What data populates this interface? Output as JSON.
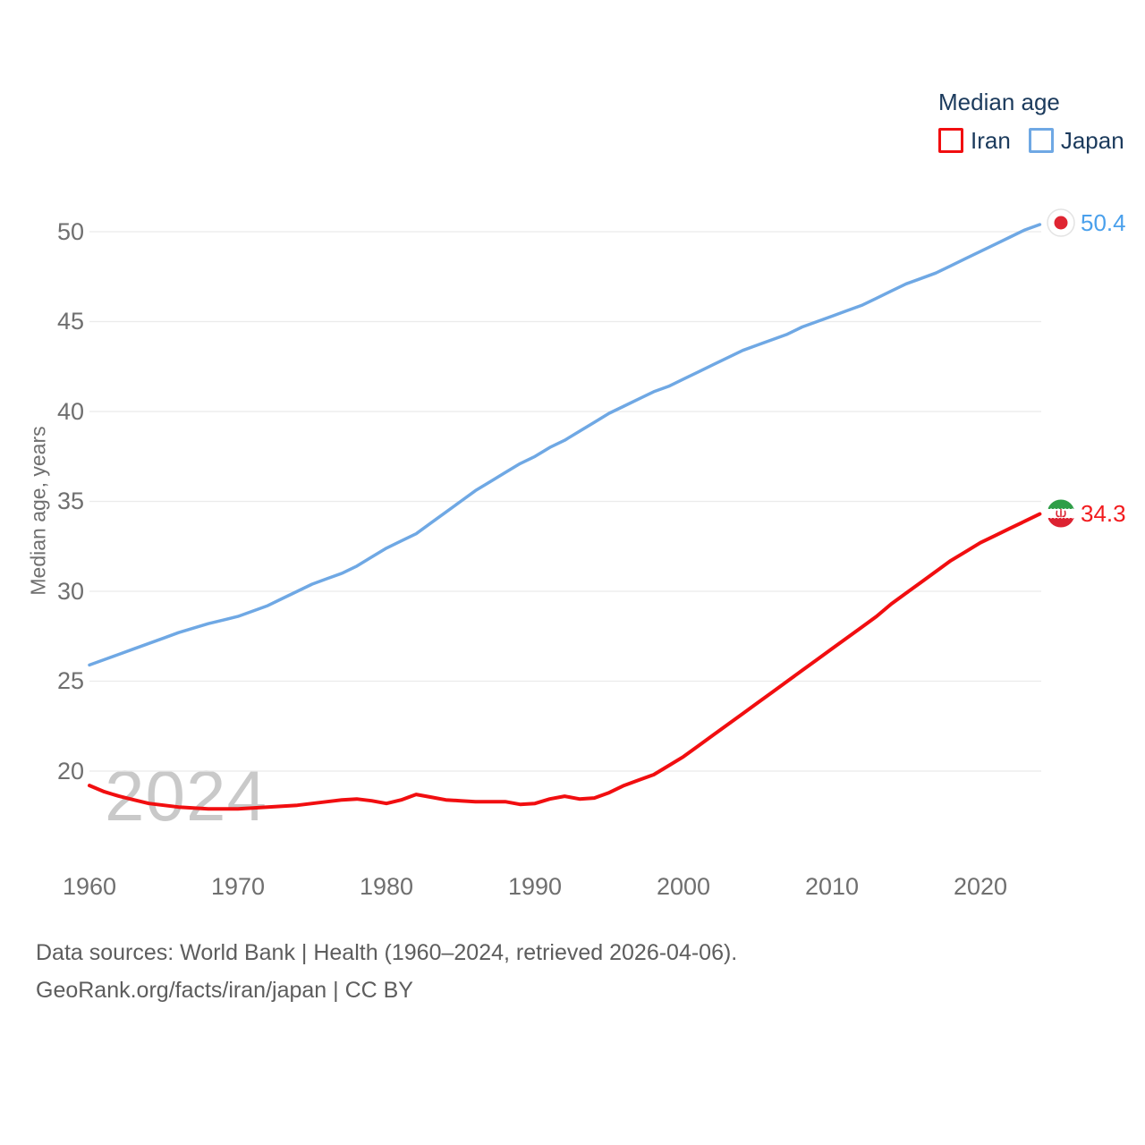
{
  "watermark": "2024",
  "legend": {
    "title": "Median age",
    "items": [
      {
        "label": "Iran"
      },
      {
        "label": "Japan"
      }
    ]
  },
  "footer": {
    "line1": "Data sources: World Bank | Health (1960–2024, retrieved 2026-04-06).",
    "line2": "GeoRank.org/facts/iran/japan | CC BY"
  },
  "colors": {
    "legend_text": "#1b3a5c",
    "axis_text": "#6f6f6f",
    "gridline": "#ebebeb",
    "watermark": "#c9c9c9",
    "footer_text": "#5d5d5d"
  },
  "chart_data": {
    "type": "line",
    "title": "Median age",
    "ylabel": "Median age, years",
    "xlabel": "",
    "grid": "horizontal",
    "legend_position": "top-right",
    "x_range": [
      1960,
      2024
    ],
    "ylim": [
      17.5,
      51
    ],
    "x_ticks": [
      1960,
      1970,
      1980,
      1990,
      2000,
      2010,
      2020
    ],
    "y_ticks": [
      50,
      45,
      40,
      35,
      30,
      25,
      20
    ],
    "years": [
      1960,
      1961,
      1962,
      1963,
      1964,
      1965,
      1966,
      1967,
      1968,
      1969,
      1970,
      1971,
      1972,
      1973,
      1974,
      1975,
      1976,
      1977,
      1978,
      1979,
      1980,
      1981,
      1982,
      1983,
      1984,
      1985,
      1986,
      1987,
      1988,
      1989,
      1990,
      1991,
      1992,
      1993,
      1994,
      1995,
      1996,
      1997,
      1998,
      1999,
      2000,
      2001,
      2002,
      2003,
      2004,
      2005,
      2006,
      2007,
      2008,
      2009,
      2010,
      2011,
      2012,
      2013,
      2014,
      2015,
      2016,
      2017,
      2018,
      2019,
      2020,
      2021,
      2022,
      2023,
      2024
    ],
    "series": [
      {
        "name": "Iran",
        "color": "#f10e10",
        "label_color": "#f21b1e",
        "end_label": "34.3",
        "values": [
          19.2,
          18.85,
          18.6,
          18.4,
          18.2,
          18.1,
          18.0,
          17.95,
          17.9,
          17.9,
          17.9,
          17.95,
          18.0,
          18.05,
          18.1,
          18.2,
          18.3,
          18.4,
          18.45,
          18.35,
          18.2,
          18.4,
          18.7,
          18.55,
          18.4,
          18.35,
          18.3,
          18.3,
          18.3,
          18.15,
          18.2,
          18.45,
          18.6,
          18.45,
          18.5,
          18.8,
          19.2,
          19.5,
          19.8,
          20.3,
          20.8,
          21.4,
          22.0,
          22.6,
          23.2,
          23.8,
          24.4,
          25.0,
          25.6,
          26.2,
          26.8,
          27.4,
          28.0,
          28.6,
          29.3,
          29.9,
          30.5,
          31.1,
          31.7,
          32.2,
          32.7,
          33.1,
          33.5,
          33.9,
          34.3
        ]
      },
      {
        "name": "Japan",
        "color": "#6fa8e4",
        "label_color": "#4aa0ec",
        "end_label": "50.4",
        "values": [
          25.9,
          26.2,
          26.5,
          26.8,
          27.1,
          27.4,
          27.7,
          27.95,
          28.2,
          28.4,
          28.6,
          28.9,
          29.2,
          29.6,
          30.0,
          30.4,
          30.7,
          31.0,
          31.4,
          31.9,
          32.4,
          32.8,
          33.2,
          33.8,
          34.4,
          35.0,
          35.6,
          36.1,
          36.6,
          37.1,
          37.5,
          38.0,
          38.4,
          38.9,
          39.4,
          39.9,
          40.3,
          40.7,
          41.1,
          41.4,
          41.8,
          42.2,
          42.6,
          43.0,
          43.4,
          43.7,
          44.0,
          44.3,
          44.7,
          45.0,
          45.3,
          45.6,
          45.9,
          46.3,
          46.7,
          47.1,
          47.4,
          47.7,
          48.1,
          48.5,
          48.9,
          49.3,
          49.7,
          50.1,
          50.4
        ]
      }
    ]
  }
}
